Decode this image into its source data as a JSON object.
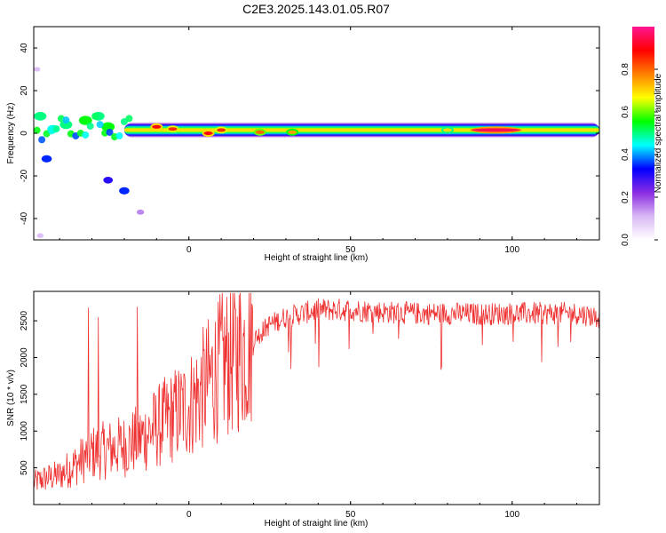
{
  "title": "C2E3.2025.143.01.05.R07",
  "chart_data": [
    {
      "type": "heatmap",
      "xlabel": "Height of straight line (km)",
      "ylabel": "Frequency (Hz)",
      "xlim": [
        -48,
        127
      ],
      "ylim": [
        -50,
        50
      ],
      "x_ticks": [
        0,
        50,
        100
      ],
      "x_tick_labels": [
        "0",
        "50",
        "100"
      ],
      "y_ticks": [
        40,
        20,
        0,
        -20,
        -40
      ],
      "y_tick_labels": [
        "40",
        "20",
        "0",
        "-20",
        "-40"
      ],
      "colorbar": {
        "label": "Normalized spectral amplitude",
        "ticks": [
          0.0,
          0.2,
          0.4,
          0.6,
          0.8
        ],
        "tick_labels": [
          "0.0",
          "0.2",
          "0.4",
          "0.6",
          "0.8"
        ],
        "range": [
          0,
          1
        ],
        "colormap": [
          "#ffffff",
          "#d9b8f5",
          "#8a2be2",
          "#0000ff",
          "#00ffff",
          "#00ff00",
          "#ffff00",
          "#ff7f00",
          "#ff0000",
          "#ff1493"
        ]
      },
      "main_band": {
        "freq_center_hz": 1.5,
        "x_start": -20,
        "x_end": 127
      },
      "hotspots": [
        {
          "x": -10,
          "y": 3,
          "amp": 0.9
        },
        {
          "x": -5,
          "y": 2,
          "amp": 0.85
        },
        {
          "x": 6,
          "y": 0,
          "amp": 0.9
        },
        {
          "x": 10,
          "y": 1.5,
          "amp": 0.85
        },
        {
          "x": 22,
          "y": 0.5,
          "amp": 0.8
        },
        {
          "x": 32,
          "y": 0.5,
          "amp": 0.75
        },
        {
          "x": 80,
          "y": 1.5,
          "amp": 0.7
        },
        {
          "x": 95,
          "y": 1.5,
          "amp": 0.95
        }
      ],
      "scatter_clusters": [
        {
          "x": -46,
          "y": 8,
          "amp": 0.5
        },
        {
          "x": -42,
          "y": 2,
          "amp": 0.45
        },
        {
          "x": -38,
          "y": 4,
          "amp": 0.5
        },
        {
          "x": -32,
          "y": 6,
          "amp": 0.55
        },
        {
          "x": -28,
          "y": 8,
          "amp": 0.5
        },
        {
          "x": -25,
          "y": 3,
          "amp": 0.55
        },
        {
          "x": -44,
          "y": -12,
          "amp": 0.35
        },
        {
          "x": -25,
          "y": -22,
          "amp": 0.3
        },
        {
          "x": -20,
          "y": -27,
          "amp": 0.35
        },
        {
          "x": -15,
          "y": -37,
          "amp": 0.15
        },
        {
          "x": -47,
          "y": 30,
          "amp": 0.1
        },
        {
          "x": -46,
          "y": -48,
          "amp": 0.1
        }
      ]
    },
    {
      "type": "line",
      "xlabel": "Height of straight line (km)",
      "ylabel": "SNR (10 * v/v)",
      "xlim": [
        -48,
        127
      ],
      "ylim": [
        0,
        2900
      ],
      "color": "#ee3030",
      "x_ticks": [
        0,
        50,
        100
      ],
      "x_tick_labels": [
        "0",
        "50",
        "100"
      ],
      "y_ticks": [
        500,
        1000,
        1500,
        2000,
        2500
      ],
      "y_tick_labels": [
        "500",
        "1000",
        "1500",
        "2000",
        "2500"
      ],
      "x": [
        -48,
        -45,
        -40,
        -35,
        -30,
        -25,
        -20,
        -15,
        -10,
        -5,
        0,
        5,
        10,
        15,
        20,
        25,
        30,
        40,
        50,
        60,
        70,
        80,
        90,
        100,
        110,
        120,
        127
      ],
      "y": [
        300,
        350,
        400,
        550,
        700,
        750,
        800,
        900,
        1050,
        1200,
        1350,
        1600,
        1900,
        2050,
        2250,
        2450,
        2550,
        2650,
        2650,
        2620,
        2600,
        2600,
        2590,
        2600,
        2600,
        2600,
        2550
      ],
      "spikes": [
        {
          "x": -31,
          "y": 2680
        },
        {
          "x": -28,
          "y": 2550
        },
        {
          "x": -16,
          "y": 2690
        },
        {
          "x": 9,
          "y": 2760
        }
      ]
    }
  ]
}
